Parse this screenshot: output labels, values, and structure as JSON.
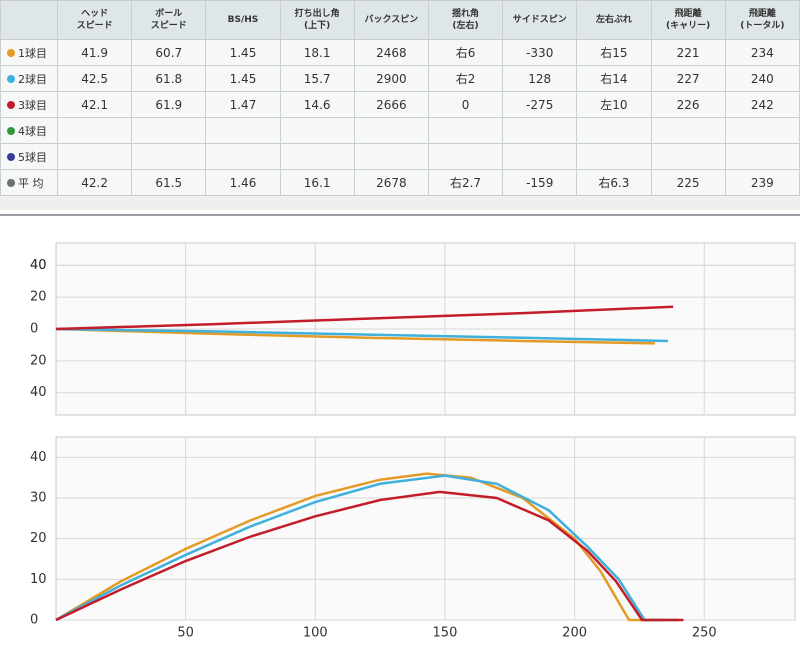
{
  "table": {
    "headers": [
      [
        "ヘッド",
        "スピード"
      ],
      [
        "ボール",
        "スピード"
      ],
      [
        "BS/HS"
      ],
      [
        "打ち出し角",
        "(上下)"
      ],
      [
        "バックスピン"
      ],
      [
        "揺れ角",
        "(左右)"
      ],
      [
        "サイドスピン"
      ],
      [
        "左右ぶれ"
      ],
      [
        "飛距離",
        "(キャリー)"
      ],
      [
        "飛距離",
        "(トータル)"
      ]
    ],
    "rows": [
      {
        "label": "1球目",
        "color": "#e39a26",
        "cells": [
          41.9,
          60.7,
          1.45,
          18.1,
          2468,
          "右6",
          -330,
          "右15",
          221,
          234
        ]
      },
      {
        "label": "2球目",
        "color": "#3fb0dc",
        "cells": [
          42.5,
          61.8,
          1.45,
          15.7,
          2900,
          "右2",
          128,
          "右14",
          227,
          240
        ]
      },
      {
        "label": "3球目",
        "color": "#c31d2a",
        "cells": [
          42.1,
          61.9,
          1.47,
          14.6,
          2666,
          0,
          -275,
          "左10",
          226,
          242
        ]
      },
      {
        "label": "4球目",
        "color": "#2f9a3a",
        "cells": []
      },
      {
        "label": "5球目",
        "color": "#3b3b9c",
        "cells": []
      },
      {
        "label": "平 均",
        "color": "#6b7075",
        "cells": [
          42.2,
          61.5,
          1.46,
          16.1,
          2678,
          "右2.7",
          -159,
          "右6.3",
          225,
          239
        ]
      }
    ]
  },
  "chart_data": [
    {
      "type": "line",
      "xlim": [
        0,
        285
      ],
      "ylim": [
        -54,
        54
      ],
      "xticks": [
        50,
        100,
        150,
        200,
        250
      ],
      "xtick_labels": false,
      "yticks": [
        {
          "value": -40,
          "label": "40"
        },
        {
          "value": -20,
          "label": "20"
        },
        0,
        20,
        40,
        40
      ],
      "grid": true,
      "series": [
        {
          "color": "#e39a26",
          "x": [
            0,
            60,
            120,
            180,
            231
          ],
          "values": [
            0,
            -3,
            -5.5,
            -7.5,
            -9
          ]
        },
        {
          "color": "#3fb0dc",
          "x": [
            0,
            60,
            120,
            180,
            236
          ],
          "values": [
            0,
            -1.5,
            -3.5,
            -5.5,
            -7.5
          ]
        },
        {
          "color": "#c31d2a",
          "x": [
            0,
            60,
            120,
            180,
            238
          ],
          "values": [
            0,
            3,
            6.5,
            10,
            14
          ]
        }
      ]
    },
    {
      "type": "line",
      "xlim": [
        0,
        285
      ],
      "ylim": [
        0,
        45
      ],
      "xticks": [
        50,
        100,
        150,
        200,
        250
      ],
      "xtick_labels": true,
      "yticks": [
        0,
        10,
        20,
        30,
        40
      ],
      "grid": true,
      "series": [
        {
          "color": "#e39a26",
          "x": [
            0,
            25,
            50,
            75,
            100,
            125,
            143,
            160,
            180,
            200,
            210,
            221,
            234
          ],
          "values": [
            0,
            9.5,
            17.5,
            24.5,
            30.5,
            34.5,
            36,
            35,
            30,
            20,
            12,
            0,
            0
          ]
        },
        {
          "color": "#3fb0dc",
          "x": [
            0,
            25,
            50,
            75,
            100,
            125,
            150,
            170,
            190,
            205,
            217,
            227,
            240
          ],
          "values": [
            0,
            8.5,
            16,
            23,
            29,
            33.5,
            35.5,
            33.5,
            27,
            18,
            10,
            0,
            0
          ]
        },
        {
          "color": "#c31d2a",
          "x": [
            0,
            25,
            50,
            75,
            100,
            125,
            148,
            170,
            190,
            205,
            216,
            226,
            242
          ],
          "values": [
            0,
            7.5,
            14.5,
            20.5,
            25.5,
            29.5,
            31.5,
            30,
            24.5,
            17,
            9.5,
            0,
            0
          ]
        }
      ]
    }
  ]
}
